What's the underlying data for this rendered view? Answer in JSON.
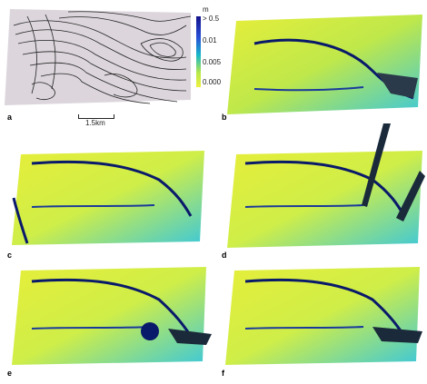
{
  "legend": {
    "unit": "m",
    "ticks": [
      "> 0.5",
      "0.01",
      "0.005",
      "0.000"
    ],
    "colors": [
      "#1a1aa0",
      "#3d6fe0",
      "#18b8c8",
      "#c8e84a",
      "#e8f040"
    ]
  },
  "scalebar": {
    "label": "1.5km"
  },
  "panels": [
    {
      "id": "a",
      "label": "a"
    },
    {
      "id": "b",
      "label": "b"
    },
    {
      "id": "c",
      "label": "c"
    },
    {
      "id": "d",
      "label": "d"
    },
    {
      "id": "e",
      "label": "e"
    },
    {
      "id": "f",
      "label": "f"
    }
  ],
  "colors": {
    "terrain_yellow": "#e6ee3a",
    "terrain_cyan": "#3ec8d8",
    "channel": "#0a1a6a",
    "contour_bg": "#d9d4d9"
  }
}
